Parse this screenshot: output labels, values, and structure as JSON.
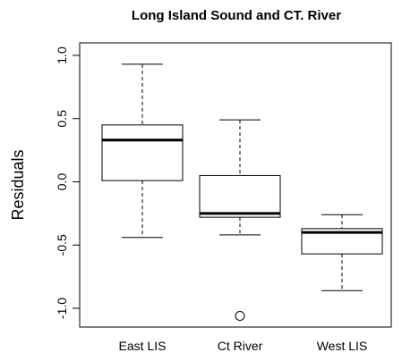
{
  "chart_data": {
    "type": "box",
    "title": "Long Island Sound and CT. River",
    "xlabel": "",
    "ylabel": "Residuals",
    "ylim": [
      -1.1,
      1.0
    ],
    "yticks": [
      1.0,
      0.5,
      0.0,
      -0.5,
      -1.0
    ],
    "ytick_labels": [
      "1.0",
      "0.5",
      "0.0",
      "-0.5",
      "-1.0"
    ],
    "categories": [
      "East LIS",
      "Ct River",
      "West LIS"
    ],
    "boxes": [
      {
        "label": "East LIS",
        "whisker_low": -0.44,
        "q1": 0.01,
        "median": 0.33,
        "q3": 0.45,
        "whisker_high": 0.93,
        "outliers": []
      },
      {
        "label": "Ct River",
        "whisker_low": -0.42,
        "q1": -0.28,
        "median": -0.25,
        "q3": 0.05,
        "whisker_high": 0.49,
        "outliers": [
          -1.06
        ]
      },
      {
        "label": "West LIS",
        "whisker_low": -0.86,
        "q1": -0.57,
        "median": -0.4,
        "q3": -0.37,
        "whisker_high": -0.26,
        "outliers": []
      }
    ],
    "grid": false,
    "legend": "none"
  }
}
